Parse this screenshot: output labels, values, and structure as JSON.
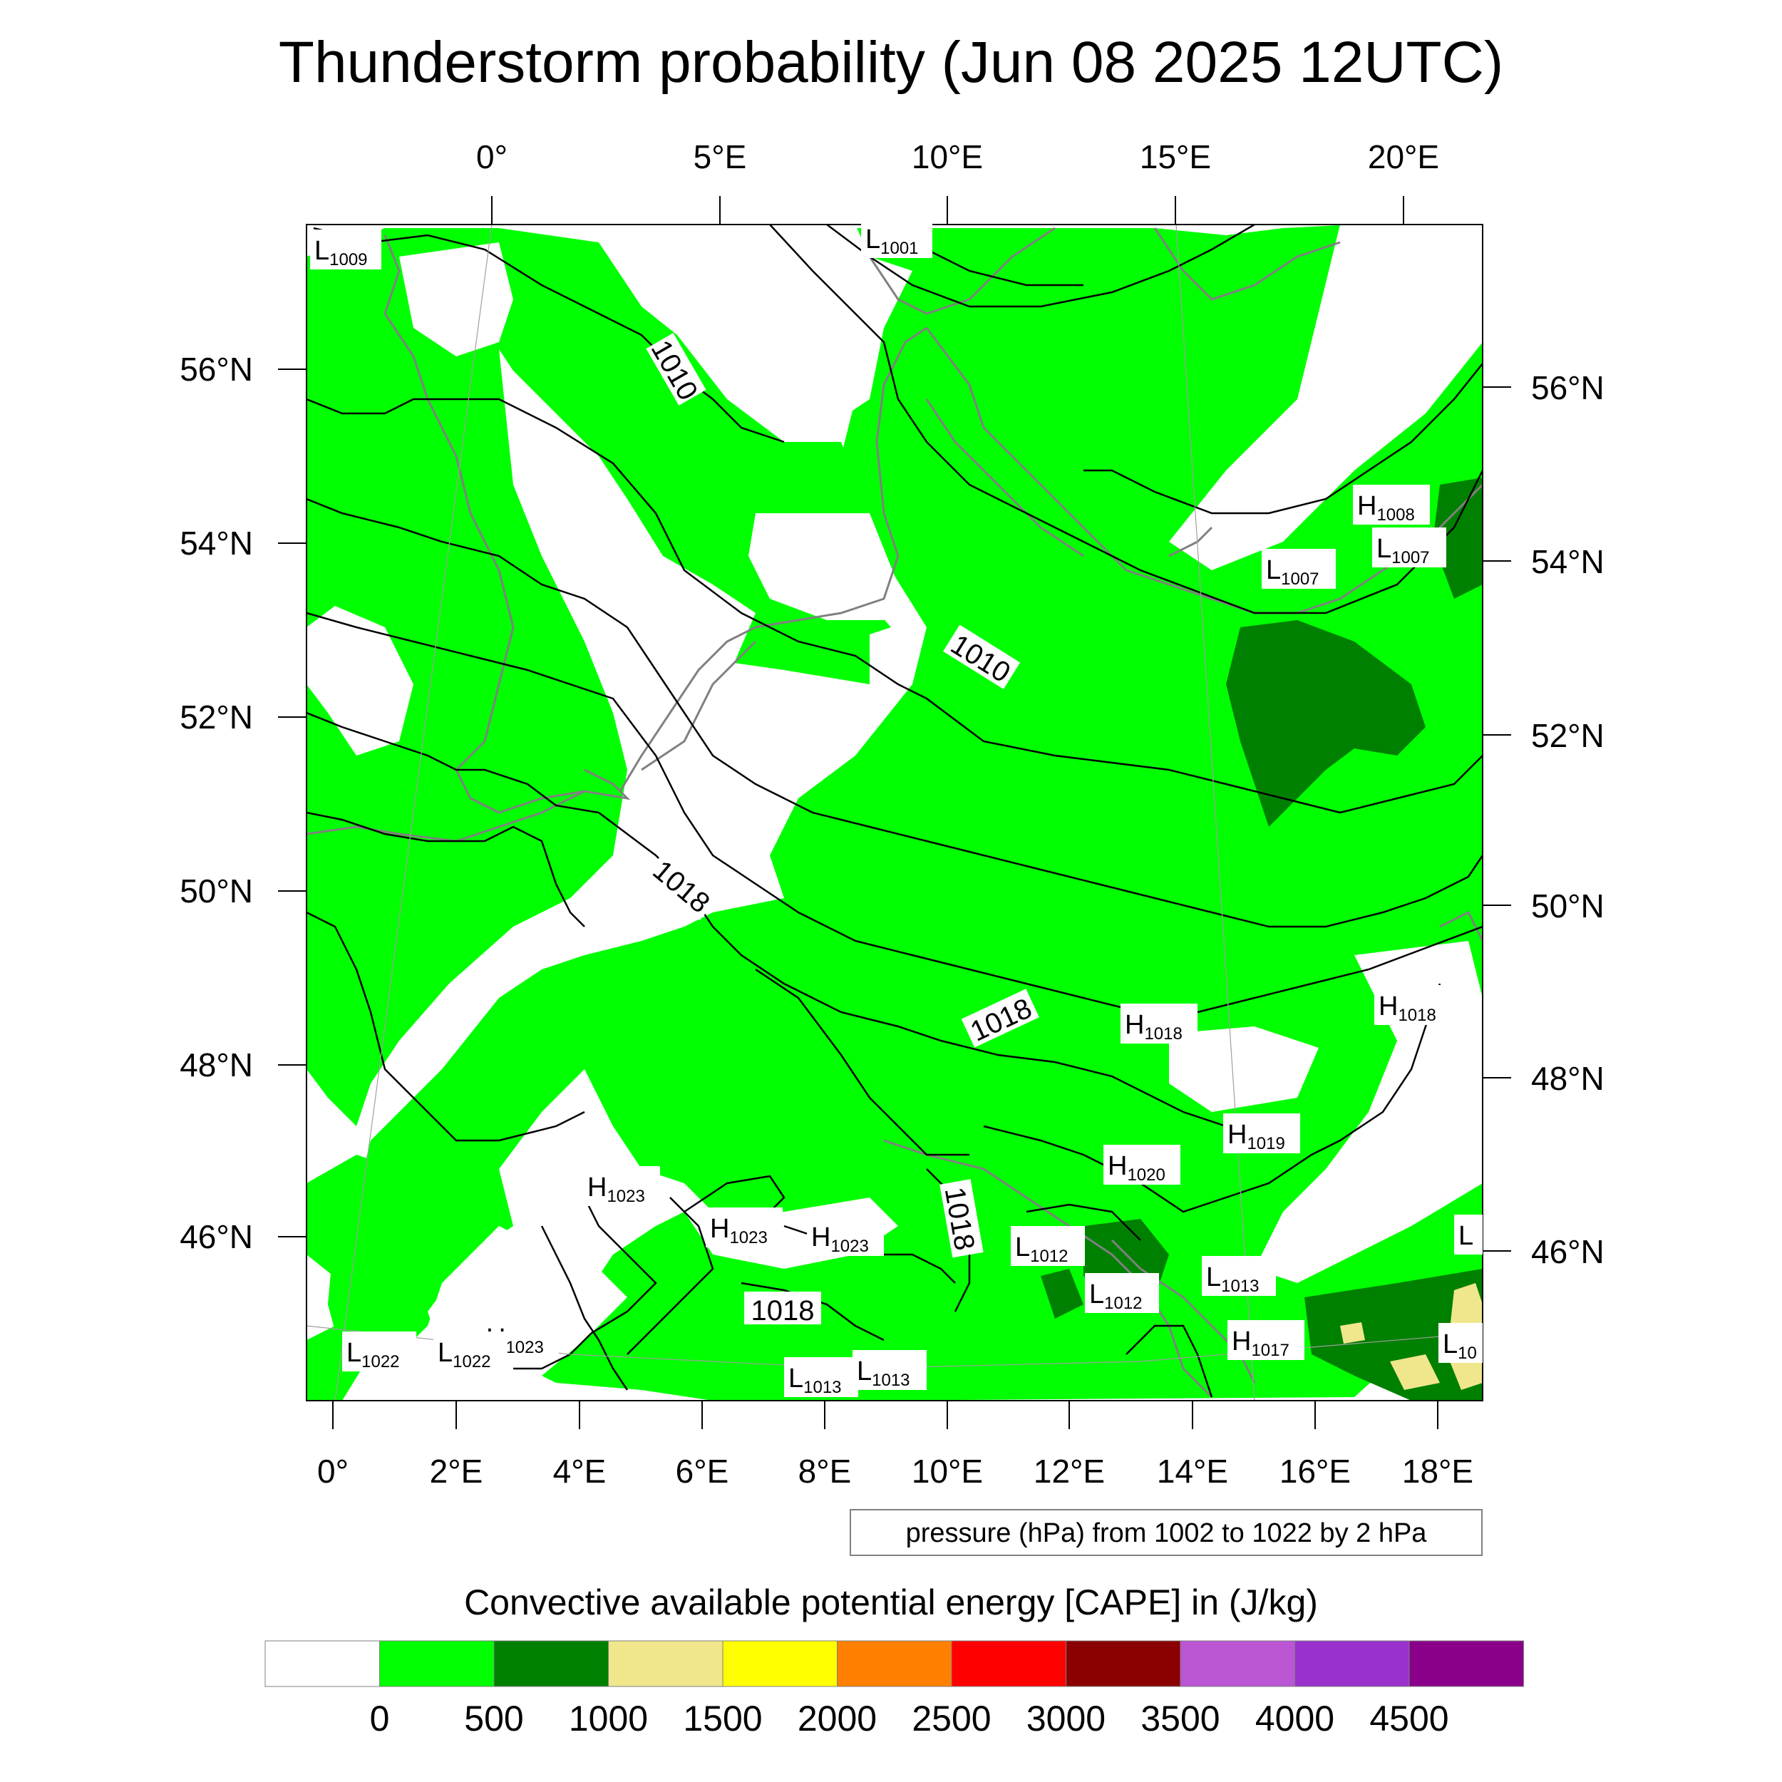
{
  "title": "Thunderstorm probability (Jun 08 2025 12UTC)",
  "top_axis_labels": [
    "0°",
    "5°E",
    "10°E",
    "15°E",
    "20°E"
  ],
  "left_axis_labels": [
    "56°N",
    "54°N",
    "52°N",
    "50°N",
    "48°N",
    "46°N"
  ],
  "right_axis_labels": [
    "56°N",
    "54°N",
    "52°N",
    "50°N",
    "48°N",
    "46°N"
  ],
  "bottom_axis_labels": [
    "0°",
    "2°E",
    "4°E",
    "6°E",
    "8°E",
    "10°E",
    "12°E",
    "14°E",
    "16°E",
    "18°E"
  ],
  "pressure_systems": [
    {
      "letter": "L",
      "value": "1009"
    },
    {
      "letter": "L",
      "value": "1001"
    },
    {
      "letter": "H",
      "value": "1008"
    },
    {
      "letter": "L",
      "value": "1007"
    },
    {
      "letter": "L",
      "value": "1007"
    },
    {
      "letter": "H",
      "value": "1018"
    },
    {
      "letter": "H",
      "value": "1018"
    },
    {
      "letter": "H",
      "value": "1019"
    },
    {
      "letter": "H",
      "value": "1020"
    },
    {
      "letter": "H",
      "value": "1023"
    },
    {
      "letter": "H",
      "value": "1023"
    },
    {
      "letter": "H",
      "value": "1023"
    },
    {
      "letter": "L",
      "value": "1012"
    },
    {
      "letter": "L",
      "value": "1012"
    },
    {
      "letter": "L",
      "value": "1013"
    },
    {
      "letter": "H",
      "value": "1017"
    },
    {
      "letter": "H",
      "value": "1023"
    },
    {
      "letter": "L",
      "value": "1022"
    },
    {
      "letter": "L",
      "value": "1022"
    },
    {
      "letter": "L",
      "value": "1013"
    },
    {
      "letter": "L",
      "value": "1013"
    },
    {
      "letter": "L",
      "value": ""
    },
    {
      "letter": "L",
      "value": "10"
    }
  ],
  "isobar_labels": [
    "1010",
    "1010",
    "1018",
    "1018",
    "1018",
    "1018"
  ],
  "contour_info": "pressure (hPa) from 1002 to 1022 by 2 hPa",
  "colorbar": {
    "title": "Convective available potential energy [CAPE] in (J/kg)",
    "colors": [
      "#ffffff",
      "#00ff00",
      "#008000",
      "#f0e68c",
      "#ffff00",
      "#ff8000",
      "#ff0000",
      "#8b0000",
      "#ba55d3",
      "#9932cc",
      "#8b008b"
    ],
    "labels": [
      "0",
      "500",
      "1000",
      "1500",
      "2000",
      "2500",
      "3000",
      "3500",
      "4000",
      "4500"
    ]
  },
  "colors": {
    "cape_0_500": "#00ff00",
    "cape_500_1000": "#008000",
    "cape_1000_1500": "#f0e68c",
    "coastline": "#808080",
    "isobar": "#000000"
  }
}
